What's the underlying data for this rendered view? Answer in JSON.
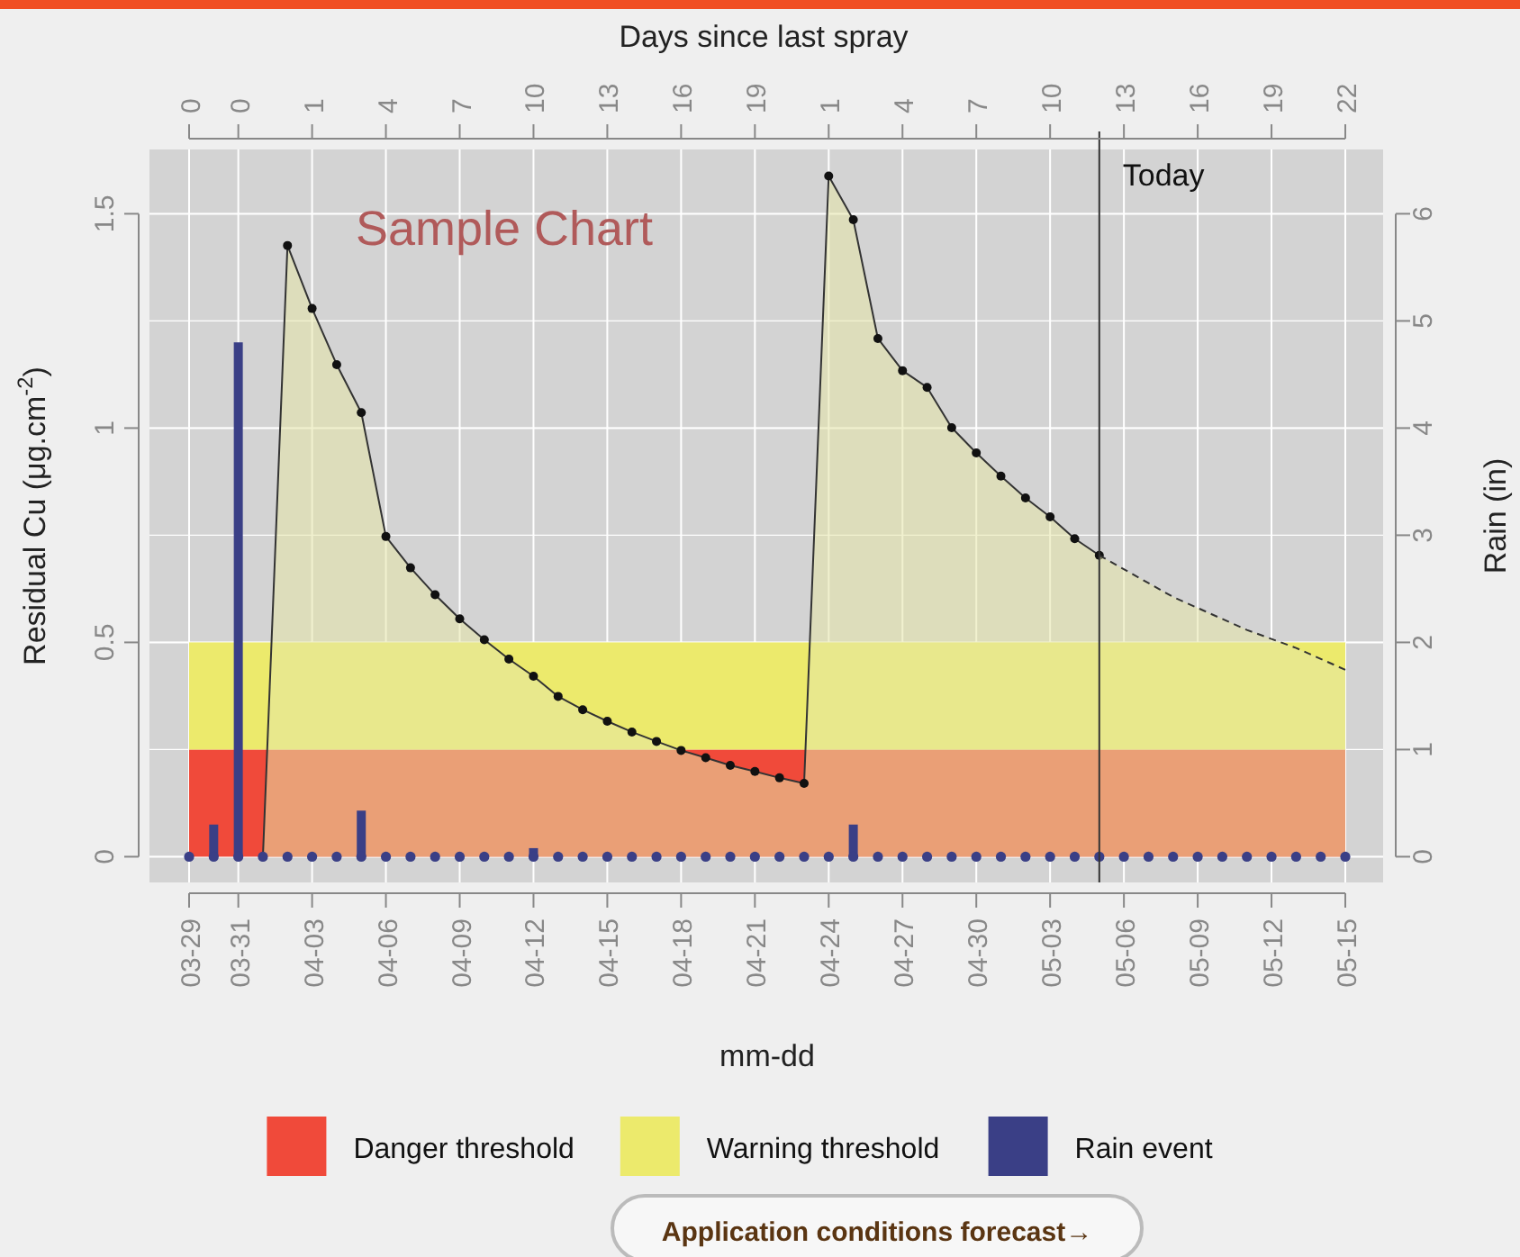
{
  "chart_data": {
    "type": "area",
    "title": "Sample Chart",
    "xlabel": "mm-dd",
    "x2label": "Days since last spray",
    "ylabel": "Residual Cu (μg.cm$^{-2}$)",
    "y2label": "Rain (in)",
    "xlim": [
      "--03-29",
      "--05-15"
    ],
    "ylim": [
      -0.06,
      1.65
    ],
    "y2lim": [
      -0.24,
      6.6
    ],
    "xticks": [
      {
        "value": "--03-29",
        "label": "03-29"
      },
      {
        "value": "--03-31",
        "label": "03-31"
      },
      {
        "value": "--04-03",
        "label": "04-03"
      },
      {
        "value": "--04-06",
        "label": "04-06"
      },
      {
        "value": "--04-09",
        "label": "04-09"
      },
      {
        "value": "--04-12",
        "label": "04-12"
      },
      {
        "value": "--04-15",
        "label": "04-15"
      },
      {
        "value": "--04-18",
        "label": "04-18"
      },
      {
        "value": "--04-21",
        "label": "04-21"
      },
      {
        "value": "--04-24",
        "label": "04-24"
      },
      {
        "value": "--04-27",
        "label": "04-27"
      },
      {
        "value": "--04-30",
        "label": "04-30"
      },
      {
        "value": "--05-03",
        "label": "05-03"
      },
      {
        "value": "--05-06",
        "label": "05-06"
      },
      {
        "value": "--05-09",
        "label": "05-09"
      },
      {
        "value": "--05-12",
        "label": "05-12"
      },
      {
        "value": "--05-15",
        "label": "05-15"
      }
    ],
    "x2lim": [
      "--03-29",
      "--05-15"
    ],
    "x2ticks": [
      {
        "value": "--03-29",
        "label": "0"
      },
      {
        "value": "--03-31",
        "label": "0"
      },
      {
        "value": "--04-03",
        "label": "1"
      },
      {
        "value": "--04-06",
        "label": "4"
      },
      {
        "value": "--04-09",
        "label": "7"
      },
      {
        "value": "--04-12",
        "label": "10"
      },
      {
        "value": "--04-15",
        "label": "13"
      },
      {
        "value": "--04-18",
        "label": "16"
      },
      {
        "value": "--04-21",
        "label": "19"
      },
      {
        "value": "--04-24",
        "label": "1"
      },
      {
        "value": "--04-27",
        "label": "4"
      },
      {
        "value": "--04-30",
        "label": "7"
      },
      {
        "value": "--05-03",
        "label": "10"
      },
      {
        "value": "--05-06",
        "label": "13"
      },
      {
        "value": "--05-09",
        "label": "16"
      },
      {
        "value": "--05-12",
        "label": "19"
      },
      {
        "value": "--05-15",
        "label": "22"
      }
    ],
    "yticks": [
      0,
      0.5,
      1,
      1.5
    ],
    "y2ticks": [
      0,
      1,
      2,
      3,
      4,
      5,
      6
    ],
    "grid": true,
    "legend": "bottom",
    "bands": [
      {
        "axis": "y",
        "from": 0,
        "to": 0.25,
        "label": "Danger threshold",
        "color": "#f04a3a"
      },
      {
        "axis": "y",
        "from": 0.25,
        "to": 0.5,
        "label": "Warning threshold",
        "color": "#ecea6c"
      }
    ],
    "ref_lines": [
      {
        "axis": "x",
        "value": "--05-05",
        "label": "Today",
        "color": "#333333"
      }
    ],
    "series": [
      {
        "color": "#333333",
        "marker": "circle",
        "x": [
          "--04-01",
          "--04-02",
          "--04-03",
          "--04-04",
          "--04-05",
          "--04-06",
          "--04-07",
          "--04-08",
          "--04-09",
          "--04-10",
          "--04-11",
          "--04-12",
          "--04-13",
          "--04-14",
          "--04-15",
          "--04-16",
          "--04-17",
          "--04-18",
          "--04-19",
          "--04-20",
          "--04-21",
          "--04-22",
          "--04-23",
          "--04-24",
          "--04-25",
          "--04-26",
          "--04-27",
          "--04-28",
          "--04-29",
          "--04-30",
          "--05-01",
          "--05-02",
          "--05-03",
          "--05-04",
          "--05-05"
        ],
        "values": [
          0,
          1.426,
          1.279,
          1.148,
          1.036,
          0.747,
          0.674,
          0.611,
          0.555,
          0.506,
          0.461,
          0.421,
          0.374,
          0.343,
          0.316,
          0.291,
          0.269,
          0.248,
          0.231,
          0.213,
          0.199,
          0.184,
          0.171,
          1.588,
          1.486,
          1.209,
          1.134,
          1.095,
          1.001,
          0.942,
          0.888,
          0.837,
          0.793,
          0.742,
          0.703
        ]
      },
      {
        "color": "#333333",
        "line_style": "dashed",
        "x": [
          "--05-05",
          "--05-08",
          "--05-11",
          "--05-13",
          "--05-15"
        ],
        "values": [
          0.703,
          0.606,
          0.529,
          0.487,
          0.436
        ]
      },
      {
        "type": "bar",
        "name": "Rain event",
        "color": "#3a3f86",
        "axis": "y2",
        "x": [
          "--03-30",
          "--03-31",
          "--04-05",
          "--04-12",
          "--04-25"
        ],
        "values": [
          0.3,
          4.8,
          0.43,
          0.08,
          0.3
        ]
      },
      {
        "type": "scatter",
        "color": "#3a3f86",
        "axis": "y2",
        "marker": "circle",
        "x": [
          "--03-29",
          "--03-30",
          "--03-31",
          "--04-01",
          "--04-02",
          "--04-03",
          "--04-04",
          "--04-05",
          "--04-06",
          "--04-07",
          "--04-08",
          "--04-09",
          "--04-10",
          "--04-11",
          "--04-12",
          "--04-13",
          "--04-14",
          "--04-15",
          "--04-16",
          "--04-17",
          "--04-18",
          "--04-19",
          "--04-20",
          "--04-21",
          "--04-22",
          "--04-23",
          "--04-24",
          "--04-25",
          "--04-26",
          "--04-27",
          "--04-28",
          "--04-29",
          "--04-30",
          "--05-01",
          "--05-02",
          "--05-03",
          "--05-04",
          "--05-05",
          "--05-06",
          "--05-07",
          "--05-08",
          "--05-09",
          "--05-10",
          "--05-11",
          "--05-12",
          "--05-13",
          "--05-14",
          "--05-15"
        ],
        "values": [
          0,
          0,
          0,
          0,
          0,
          0,
          0,
          0,
          0,
          0,
          0,
          0,
          0,
          0,
          0,
          0,
          0,
          0,
          0,
          0,
          0,
          0,
          0,
          0,
          0,
          0,
          0,
          0,
          0,
          0,
          0,
          0,
          0,
          0,
          0,
          0,
          0,
          0,
          0,
          0,
          0,
          0,
          0,
          0,
          0,
          0,
          0,
          0
        ]
      }
    ],
    "annotations": [
      "Application conditions forecast→"
    ]
  }
}
